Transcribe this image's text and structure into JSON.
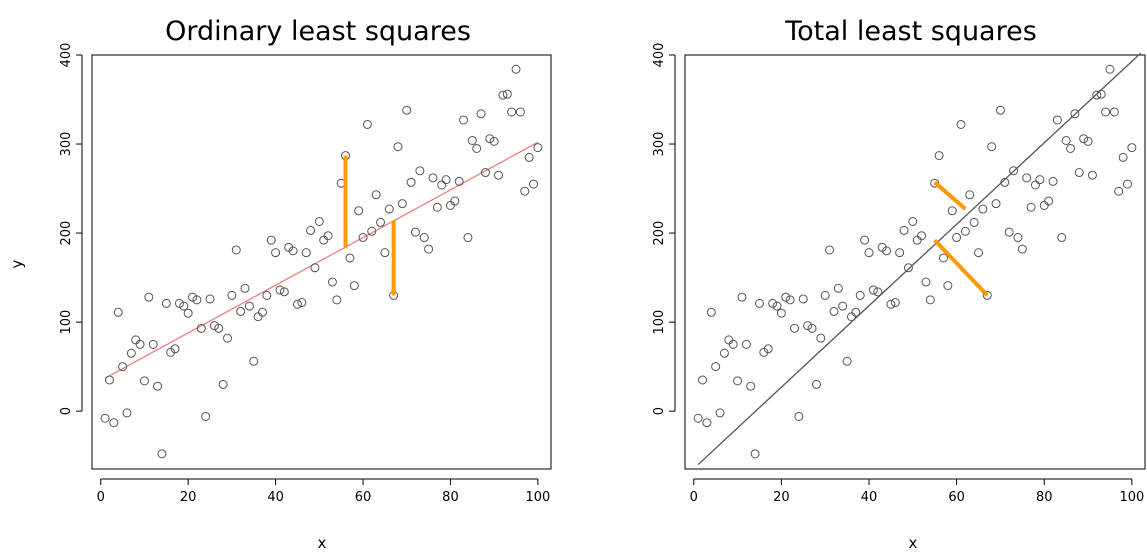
{
  "chart_data": [
    {
      "type": "scatter",
      "title": "Ordinary least squares",
      "xlabel": "x",
      "ylabel": "y",
      "xlim": [
        -2,
        103
      ],
      "ylim": [
        -65,
        400
      ],
      "xticks": [
        "0",
        "20",
        "40",
        "60",
        "80",
        "100"
      ],
      "yticks": [
        "0",
        "100",
        "200",
        "300",
        "400"
      ],
      "grid": false,
      "point_color": "#555555",
      "fit_line": {
        "x1": 1,
        "y1": 37,
        "x2": 100,
        "y2": 302,
        "color": "#f08080"
      },
      "residuals": [
        {
          "x1": 56,
          "y1": 287,
          "x2": 56,
          "y2": 183,
          "color": "#ff9900"
        },
        {
          "x1": 67,
          "y1": 130,
          "x2": 67,
          "y2": 214,
          "color": "#ff9900"
        }
      ],
      "points": [
        [
          1,
          -8
        ],
        [
          2,
          35
        ],
        [
          3,
          -13
        ],
        [
          4,
          111
        ],
        [
          5,
          50
        ],
        [
          6,
          -2
        ],
        [
          7,
          65
        ],
        [
          8,
          80
        ],
        [
          9,
          75
        ],
        [
          10,
          34
        ],
        [
          11,
          128
        ],
        [
          12,
          75
        ],
        [
          13,
          28
        ],
        [
          14,
          -48
        ],
        [
          15,
          121
        ],
        [
          16,
          66
        ],
        [
          17,
          70
        ],
        [
          18,
          121
        ],
        [
          19,
          118
        ],
        [
          20,
          110
        ],
        [
          21,
          128
        ],
        [
          22,
          125
        ],
        [
          23,
          93
        ],
        [
          24,
          -6
        ],
        [
          25,
          126
        ],
        [
          26,
          96
        ],
        [
          27,
          93
        ],
        [
          28,
          30
        ],
        [
          29,
          82
        ],
        [
          30,
          130
        ],
        [
          31,
          181
        ],
        [
          32,
          112
        ],
        [
          33,
          138
        ],
        [
          34,
          118
        ],
        [
          35,
          56
        ],
        [
          36,
          106
        ],
        [
          37,
          111
        ],
        [
          38,
          130
        ],
        [
          39,
          192
        ],
        [
          40,
          178
        ],
        [
          41,
          136
        ],
        [
          42,
          134
        ],
        [
          43,
          184
        ],
        [
          44,
          180
        ],
        [
          45,
          120
        ],
        [
          46,
          122
        ],
        [
          47,
          178
        ],
        [
          48,
          203
        ],
        [
          49,
          161
        ],
        [
          50,
          213
        ],
        [
          51,
          192
        ],
        [
          52,
          197
        ],
        [
          53,
          145
        ],
        [
          54,
          125
        ],
        [
          55,
          256
        ],
        [
          56,
          287
        ],
        [
          57,
          172
        ],
        [
          58,
          141
        ],
        [
          59,
          225
        ],
        [
          60,
          195
        ],
        [
          61,
          322
        ],
        [
          62,
          202
        ],
        [
          63,
          243
        ],
        [
          64,
          212
        ],
        [
          65,
          178
        ],
        [
          66,
          227
        ],
        [
          67,
          130
        ],
        [
          68,
          297
        ],
        [
          69,
          233
        ],
        [
          70,
          338
        ],
        [
          71,
          257
        ],
        [
          72,
          201
        ],
        [
          73,
          270
        ],
        [
          74,
          195
        ],
        [
          75,
          182
        ],
        [
          76,
          262
        ],
        [
          77,
          229
        ],
        [
          78,
          254
        ],
        [
          79,
          260
        ],
        [
          80,
          231
        ],
        [
          81,
          236
        ],
        [
          82,
          258
        ],
        [
          83,
          327
        ],
        [
          84,
          195
        ],
        [
          85,
          304
        ],
        [
          86,
          295
        ],
        [
          87,
          334
        ],
        [
          88,
          268
        ],
        [
          89,
          306
        ],
        [
          90,
          303
        ],
        [
          91,
          265
        ],
        [
          92,
          355
        ],
        [
          93,
          356
        ],
        [
          94,
          336
        ],
        [
          95,
          384
        ],
        [
          96,
          336
        ],
        [
          97,
          247
        ],
        [
          98,
          285
        ],
        [
          99,
          255
        ],
        [
          100,
          296
        ]
      ]
    },
    {
      "type": "scatter",
      "title": "Total least squares",
      "xlabel": "x",
      "ylabel": "",
      "xlim": [
        -2,
        103
      ],
      "ylim": [
        -65,
        400
      ],
      "xticks": [
        "0",
        "20",
        "40",
        "60",
        "80",
        "100"
      ],
      "yticks": [
        "0",
        "100",
        "200",
        "300",
        "400"
      ],
      "grid": false,
      "point_color": "#555555",
      "fit_line": {
        "x1": 1,
        "y1": -60,
        "x2": 102,
        "y2": 402,
        "color": "#555555"
      },
      "residuals": [
        {
          "x1": 55,
          "y1": 257,
          "x2": 62,
          "y2": 227,
          "color": "#ff9900"
        },
        {
          "x1": 67,
          "y1": 130,
          "x2": 55,
          "y2": 192,
          "color": "#ff9900"
        }
      ],
      "points": [
        [
          1,
          -8
        ],
        [
          2,
          35
        ],
        [
          3,
          -13
        ],
        [
          4,
          111
        ],
        [
          5,
          50
        ],
        [
          6,
          -2
        ],
        [
          7,
          65
        ],
        [
          8,
          80
        ],
        [
          9,
          75
        ],
        [
          10,
          34
        ],
        [
          11,
          128
        ],
        [
          12,
          75
        ],
        [
          13,
          28
        ],
        [
          14,
          -48
        ],
        [
          15,
          121
        ],
        [
          16,
          66
        ],
        [
          17,
          70
        ],
        [
          18,
          121
        ],
        [
          19,
          118
        ],
        [
          20,
          110
        ],
        [
          21,
          128
        ],
        [
          22,
          125
        ],
        [
          23,
          93
        ],
        [
          24,
          -6
        ],
        [
          25,
          126
        ],
        [
          26,
          96
        ],
        [
          27,
          93
        ],
        [
          28,
          30
        ],
        [
          29,
          82
        ],
        [
          30,
          130
        ],
        [
          31,
          181
        ],
        [
          32,
          112
        ],
        [
          33,
          138
        ],
        [
          34,
          118
        ],
        [
          35,
          56
        ],
        [
          36,
          106
        ],
        [
          37,
          111
        ],
        [
          38,
          130
        ],
        [
          39,
          192
        ],
        [
          40,
          178
        ],
        [
          41,
          136
        ],
        [
          42,
          134
        ],
        [
          43,
          184
        ],
        [
          44,
          180
        ],
        [
          45,
          120
        ],
        [
          46,
          122
        ],
        [
          47,
          178
        ],
        [
          48,
          203
        ],
        [
          49,
          161
        ],
        [
          50,
          213
        ],
        [
          51,
          192
        ],
        [
          52,
          197
        ],
        [
          53,
          145
        ],
        [
          54,
          125
        ],
        [
          55,
          256
        ],
        [
          56,
          287
        ],
        [
          57,
          172
        ],
        [
          58,
          141
        ],
        [
          59,
          225
        ],
        [
          60,
          195
        ],
        [
          61,
          322
        ],
        [
          62,
          202
        ],
        [
          63,
          243
        ],
        [
          64,
          212
        ],
        [
          65,
          178
        ],
        [
          66,
          227
        ],
        [
          67,
          130
        ],
        [
          68,
          297
        ],
        [
          69,
          233
        ],
        [
          70,
          338
        ],
        [
          71,
          257
        ],
        [
          72,
          201
        ],
        [
          73,
          270
        ],
        [
          74,
          195
        ],
        [
          75,
          182
        ],
        [
          76,
          262
        ],
        [
          77,
          229
        ],
        [
          78,
          254
        ],
        [
          79,
          260
        ],
        [
          80,
          231
        ],
        [
          81,
          236
        ],
        [
          82,
          258
        ],
        [
          83,
          327
        ],
        [
          84,
          195
        ],
        [
          85,
          304
        ],
        [
          86,
          295
        ],
        [
          87,
          334
        ],
        [
          88,
          268
        ],
        [
          89,
          306
        ],
        [
          90,
          303
        ],
        [
          91,
          265
        ],
        [
          92,
          355
        ],
        [
          93,
          356
        ],
        [
          94,
          336
        ],
        [
          95,
          384
        ],
        [
          96,
          336
        ],
        [
          97,
          247
        ],
        [
          98,
          285
        ],
        [
          99,
          255
        ],
        [
          100,
          296
        ]
      ]
    }
  ]
}
